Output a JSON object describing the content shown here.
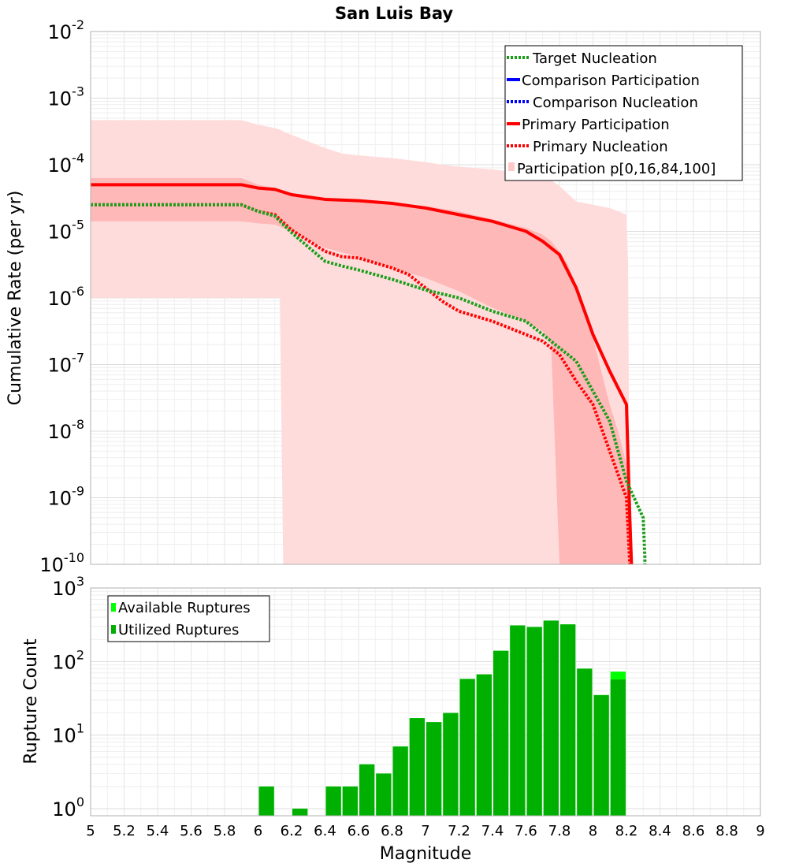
{
  "chart_data": [
    {
      "type": "line",
      "title": "San Luis Bay",
      "xlabel": "",
      "ylabel": "Cumulative Rate (per yr)",
      "xlim": [
        5,
        9
      ],
      "ylim_exponents": [
        -10,
        -2
      ],
      "yscale": "log",
      "y_tick_base": "10",
      "y_tick_exponents": [
        "-10",
        "-9",
        "-8",
        "-7",
        "-6",
        "-5",
        "-4",
        "-3",
        "-2"
      ],
      "legend": [
        {
          "label": "Target Nucleation",
          "color": "#1a9e1a",
          "style": "dotted"
        },
        {
          "label": "Comparison Participation",
          "color": "#0000ff",
          "style": "solid"
        },
        {
          "label": "Comparison Nucleation",
          "color": "#0000ff",
          "style": "dotted"
        },
        {
          "label": "Primary Participation",
          "color": "#ff0000",
          "style": "solid"
        },
        {
          "label": "Primary Nucleation",
          "color": "#ff0000",
          "style": "dotted"
        },
        {
          "label": "Participation p[0,16,84,100]",
          "color": "#ffc8c8",
          "style": "band"
        }
      ],
      "legend_position": "top-right",
      "bands": [
        {
          "name": "p0-p100",
          "color": "#ffdcdc",
          "x": [
            5.0,
            5.1,
            5.9,
            6.0,
            6.1,
            6.13,
            6.15,
            6.2,
            6.3,
            6.4,
            6.5,
            6.6,
            6.7,
            6.8,
            6.9,
            7.0,
            7.1,
            7.2,
            7.3,
            7.4,
            7.5,
            7.6,
            7.7,
            7.8,
            7.9,
            8.0,
            8.1,
            8.15,
            8.2,
            8.21,
            8.22
          ],
          "upper": [
            -3.33,
            -3.33,
            -3.33,
            -3.4,
            -3.45,
            -3.47,
            -3.5,
            -3.55,
            -3.65,
            -3.75,
            -3.83,
            -3.86,
            -3.88,
            -3.9,
            -3.93,
            -3.96,
            -4.0,
            -4.03,
            -4.05,
            -4.07,
            -4.1,
            -4.12,
            -4.15,
            -4.32,
            -4.55,
            -4.6,
            -4.65,
            -4.7,
            -4.75,
            -5.5,
            -10
          ],
          "lower": [
            -6.0,
            -6.0,
            -6.0,
            -6.0,
            -6.0,
            -6.0,
            -10,
            -10,
            -10,
            -10,
            -10,
            -10,
            -10,
            -10,
            -10,
            -10,
            -10,
            -10,
            -10,
            -10,
            -10,
            -10,
            -10,
            -10,
            -10,
            -10,
            -10,
            -10,
            -10,
            -10,
            -10
          ]
        },
        {
          "name": "p16-p84",
          "color": "#ffb8b8",
          "x": [
            5.0,
            5.9,
            6.0,
            6.1,
            6.2,
            6.4,
            6.6,
            6.8,
            7.0,
            7.2,
            7.4,
            7.6,
            7.7,
            7.75,
            7.8,
            7.85,
            7.9,
            7.95,
            8.0,
            8.05,
            8.1,
            8.15,
            8.2,
            8.22,
            8.23
          ],
          "upper": [
            -4.2,
            -4.2,
            -4.3,
            -4.35,
            -4.45,
            -4.5,
            -4.52,
            -4.57,
            -4.62,
            -4.7,
            -4.82,
            -4.95,
            -5.05,
            -5.15,
            -5.3,
            -5.5,
            -5.8,
            -6.2,
            -6.6,
            -7.1,
            -7.6,
            -8.0,
            -8.5,
            -9.0,
            -10
          ],
          "lower": [
            -4.85,
            -4.85,
            -4.88,
            -4.9,
            -5.0,
            -5.25,
            -5.38,
            -5.55,
            -5.7,
            -5.9,
            -6.15,
            -6.35,
            -6.5,
            -6.7,
            -10,
            -10,
            -10,
            -10,
            -10,
            -10,
            -10,
            -10,
            -10,
            -10,
            -10
          ]
        }
      ],
      "series": [
        {
          "name": "Primary Participation",
          "color": "#ff0000",
          "style": "solid",
          "x": [
            5.0,
            5.9,
            6.0,
            6.1,
            6.2,
            6.4,
            6.6,
            6.8,
            7.0,
            7.2,
            7.4,
            7.6,
            7.7,
            7.8,
            7.9,
            8.0,
            8.1,
            8.2,
            8.22,
            8.23
          ],
          "log10": [
            -4.3,
            -4.3,
            -4.35,
            -4.37,
            -4.45,
            -4.52,
            -4.54,
            -4.58,
            -4.65,
            -4.75,
            -4.85,
            -5.0,
            -5.15,
            -5.35,
            -5.85,
            -6.55,
            -7.1,
            -7.6,
            -9.3,
            -10
          ]
        },
        {
          "name": "Primary Nucleation",
          "color": "#ff0000",
          "style": "dotted",
          "x": [
            5.0,
            5.9,
            6.0,
            6.1,
            6.2,
            6.4,
            6.5,
            6.6,
            6.8,
            6.9,
            7.0,
            7.1,
            7.2,
            7.4,
            7.5,
            7.6,
            7.7,
            7.8,
            7.9,
            8.0,
            8.1,
            8.2,
            8.22
          ],
          "log10": [
            -4.6,
            -4.6,
            -4.7,
            -4.75,
            -4.98,
            -5.3,
            -5.38,
            -5.4,
            -5.55,
            -5.65,
            -5.85,
            -6.05,
            -6.2,
            -6.35,
            -6.45,
            -6.55,
            -6.65,
            -6.85,
            -7.25,
            -7.6,
            -8.3,
            -9.0,
            -10
          ]
        },
        {
          "name": "Target Nucleation",
          "color": "#1a9e1a",
          "style": "dotted",
          "x": [
            5.0,
            5.9,
            6.0,
            6.1,
            6.2,
            6.4,
            6.5,
            6.6,
            6.8,
            6.9,
            7.0,
            7.2,
            7.4,
            7.6,
            7.7,
            7.8,
            7.9,
            8.0,
            8.1,
            8.2,
            8.3,
            8.31,
            8.31
          ],
          "log10": [
            -4.6,
            -4.6,
            -4.7,
            -4.77,
            -5.02,
            -5.45,
            -5.52,
            -5.58,
            -5.72,
            -5.8,
            -5.88,
            -6.0,
            -6.2,
            -6.35,
            -6.55,
            -6.75,
            -6.95,
            -7.4,
            -7.85,
            -8.75,
            -9.3,
            -9.9,
            -10
          ]
        }
      ]
    },
    {
      "type": "bar",
      "title": "",
      "xlabel": "Magnitude",
      "ylabel": "Rupture Count",
      "xlim": [
        5,
        9
      ],
      "yscale": "log",
      "ylim": [
        0.8,
        1000
      ],
      "y_tick_base": "10",
      "y_tick_exponents": [
        "0",
        "1",
        "2",
        "3"
      ],
      "x_ticks": [
        "5",
        "5.2",
        "5.4",
        "5.6",
        "5.8",
        "6",
        "6.2",
        "6.4",
        "6.6",
        "6.8",
        "7",
        "7.2",
        "7.4",
        "7.6",
        "7.8",
        "8",
        "8.2",
        "8.4",
        "8.6",
        "8.8",
        "9"
      ],
      "legend": [
        {
          "label": "Available Ruptures",
          "color": "#00ff00"
        },
        {
          "label": "Utilized Ruptures",
          "color": "#00b000"
        }
      ],
      "legend_position": "top-left",
      "bin_width": 0.1,
      "bin_centers": [
        6.05,
        6.25,
        6.45,
        6.55,
        6.65,
        6.75,
        6.85,
        6.95,
        7.05,
        7.15,
        7.25,
        7.35,
        7.45,
        7.55,
        7.65,
        7.75,
        7.85,
        7.95,
        8.05,
        8.15
      ],
      "available": [
        2,
        1,
        2,
        2,
        4,
        3,
        7,
        17,
        15,
        20,
        58,
        67,
        140,
        310,
        295,
        360,
        320,
        80,
        35,
        73
      ],
      "utilized": [
        2,
        1,
        2,
        2,
        4,
        3,
        7,
        17,
        15,
        20,
        58,
        67,
        140,
        310,
        295,
        360,
        320,
        80,
        35,
        57
      ]
    }
  ]
}
